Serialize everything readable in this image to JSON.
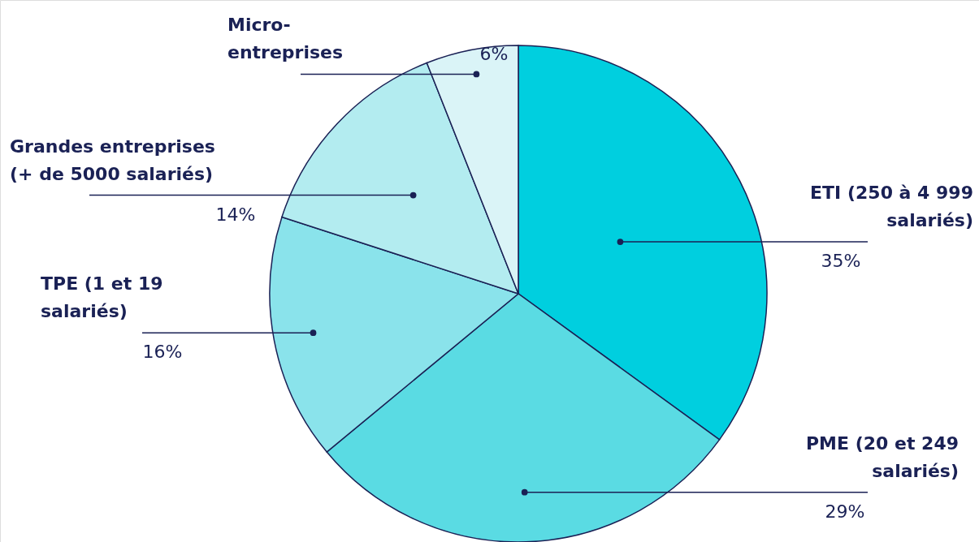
{
  "chart_data": {
    "type": "pie",
    "categories": [
      "ETI (250 à 4 999\nsalariés)",
      "PME (20 et 249\nsalariés)",
      "TPE (1 et 19\nsalariés)",
      "Grandes entreprises\n(+ de 5000 salariés)",
      "Micro-\nentreprises"
    ],
    "values": [
      35,
      29,
      16,
      14,
      6
    ],
    "colors": [
      "#00cfdf",
      "#5adbe3",
      "#8ae3eb",
      "#b3ecf0",
      "#daf4f7"
    ],
    "value_labels": [
      "35%",
      "29%",
      "16%",
      "14%",
      "6%"
    ]
  }
}
